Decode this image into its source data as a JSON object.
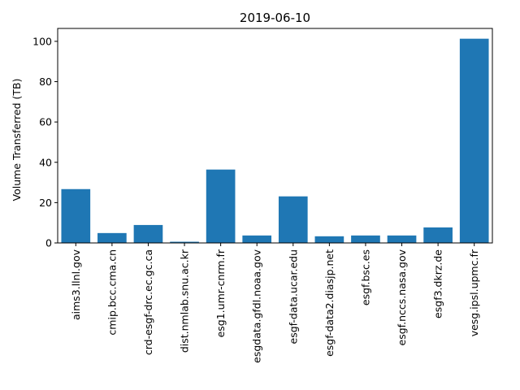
{
  "chart_data": {
    "type": "bar",
    "title": "2019-06-10",
    "xlabel": "",
    "ylabel": "Volume Transferred (TB)",
    "ylim": [
      0,
      106.4
    ],
    "yticks": [
      0,
      20,
      40,
      60,
      80,
      100
    ],
    "grid": false,
    "bar_color": "#1f77b4",
    "categories": [
      "aims3.llnl.gov",
      "cmip.bcc.cma.cn",
      "crd-esgf-drc.ec.gc.ca",
      "dist.nmlab.snu.ac.kr",
      "esg1.umr-cnrm.fr",
      "esgdata.gfdl.noaa.gov",
      "esgf-data.ucar.edu",
      "esgf-data2.diasjp.net",
      "esgf.bsc.es",
      "esgf.nccs.nasa.gov",
      "esgf3.dkrz.de",
      "vesg.ipsl.upmc.fr"
    ],
    "values": [
      26.7,
      4.9,
      8.9,
      0.6,
      36.4,
      3.7,
      23.1,
      3.3,
      3.7,
      3.7,
      7.7,
      101.3
    ]
  }
}
